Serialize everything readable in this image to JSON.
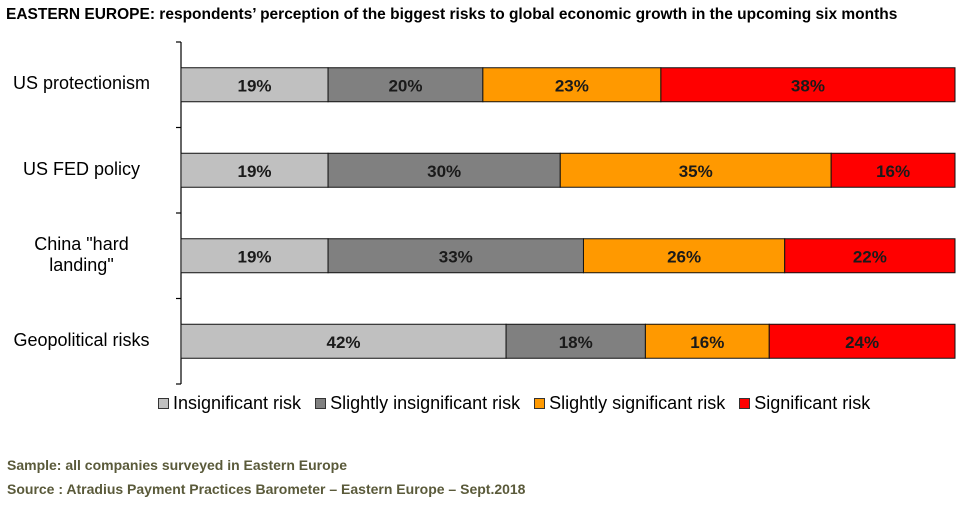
{
  "title": "EASTERN EUROPE: respondents’ perception of the biggest risks to global economic growth in the upcoming six months",
  "chart_data": {
    "type": "bar",
    "orientation": "horizontal",
    "stacked": true,
    "percent_stacked": true,
    "categories": [
      "US protectionism",
      "US FED policy",
      "China \"hard landing\"",
      "Geopolitical risks"
    ],
    "category_lines": [
      [
        "US protectionism"
      ],
      [
        "US FED policy"
      ],
      [
        "China \"hard",
        "landing\""
      ],
      [
        "Geopolitical risks"
      ]
    ],
    "series": [
      {
        "name": "Insignificant risk",
        "color": "#c0c0c0",
        "values": [
          19,
          19,
          19,
          42
        ]
      },
      {
        "name": "Slightly insignificant risk",
        "color": "#808080",
        "values": [
          20,
          30,
          33,
          18
        ]
      },
      {
        "name": "Slightly significant risk",
        "color": "#ff9900",
        "values": [
          23,
          35,
          26,
          16
        ]
      },
      {
        "name": "Significant risk",
        "color": "#ff0000",
        "values": [
          38,
          16,
          22,
          24
        ]
      }
    ],
    "value_suffix": "%",
    "xlim": [
      0,
      100
    ],
    "legend_position": "bottom"
  },
  "footer": {
    "sample": "Sample: all companies surveyed in Eastern Europe",
    "source": "Source : Atradius Payment Practices Barometer – Eastern Europe – Sept.2018"
  }
}
